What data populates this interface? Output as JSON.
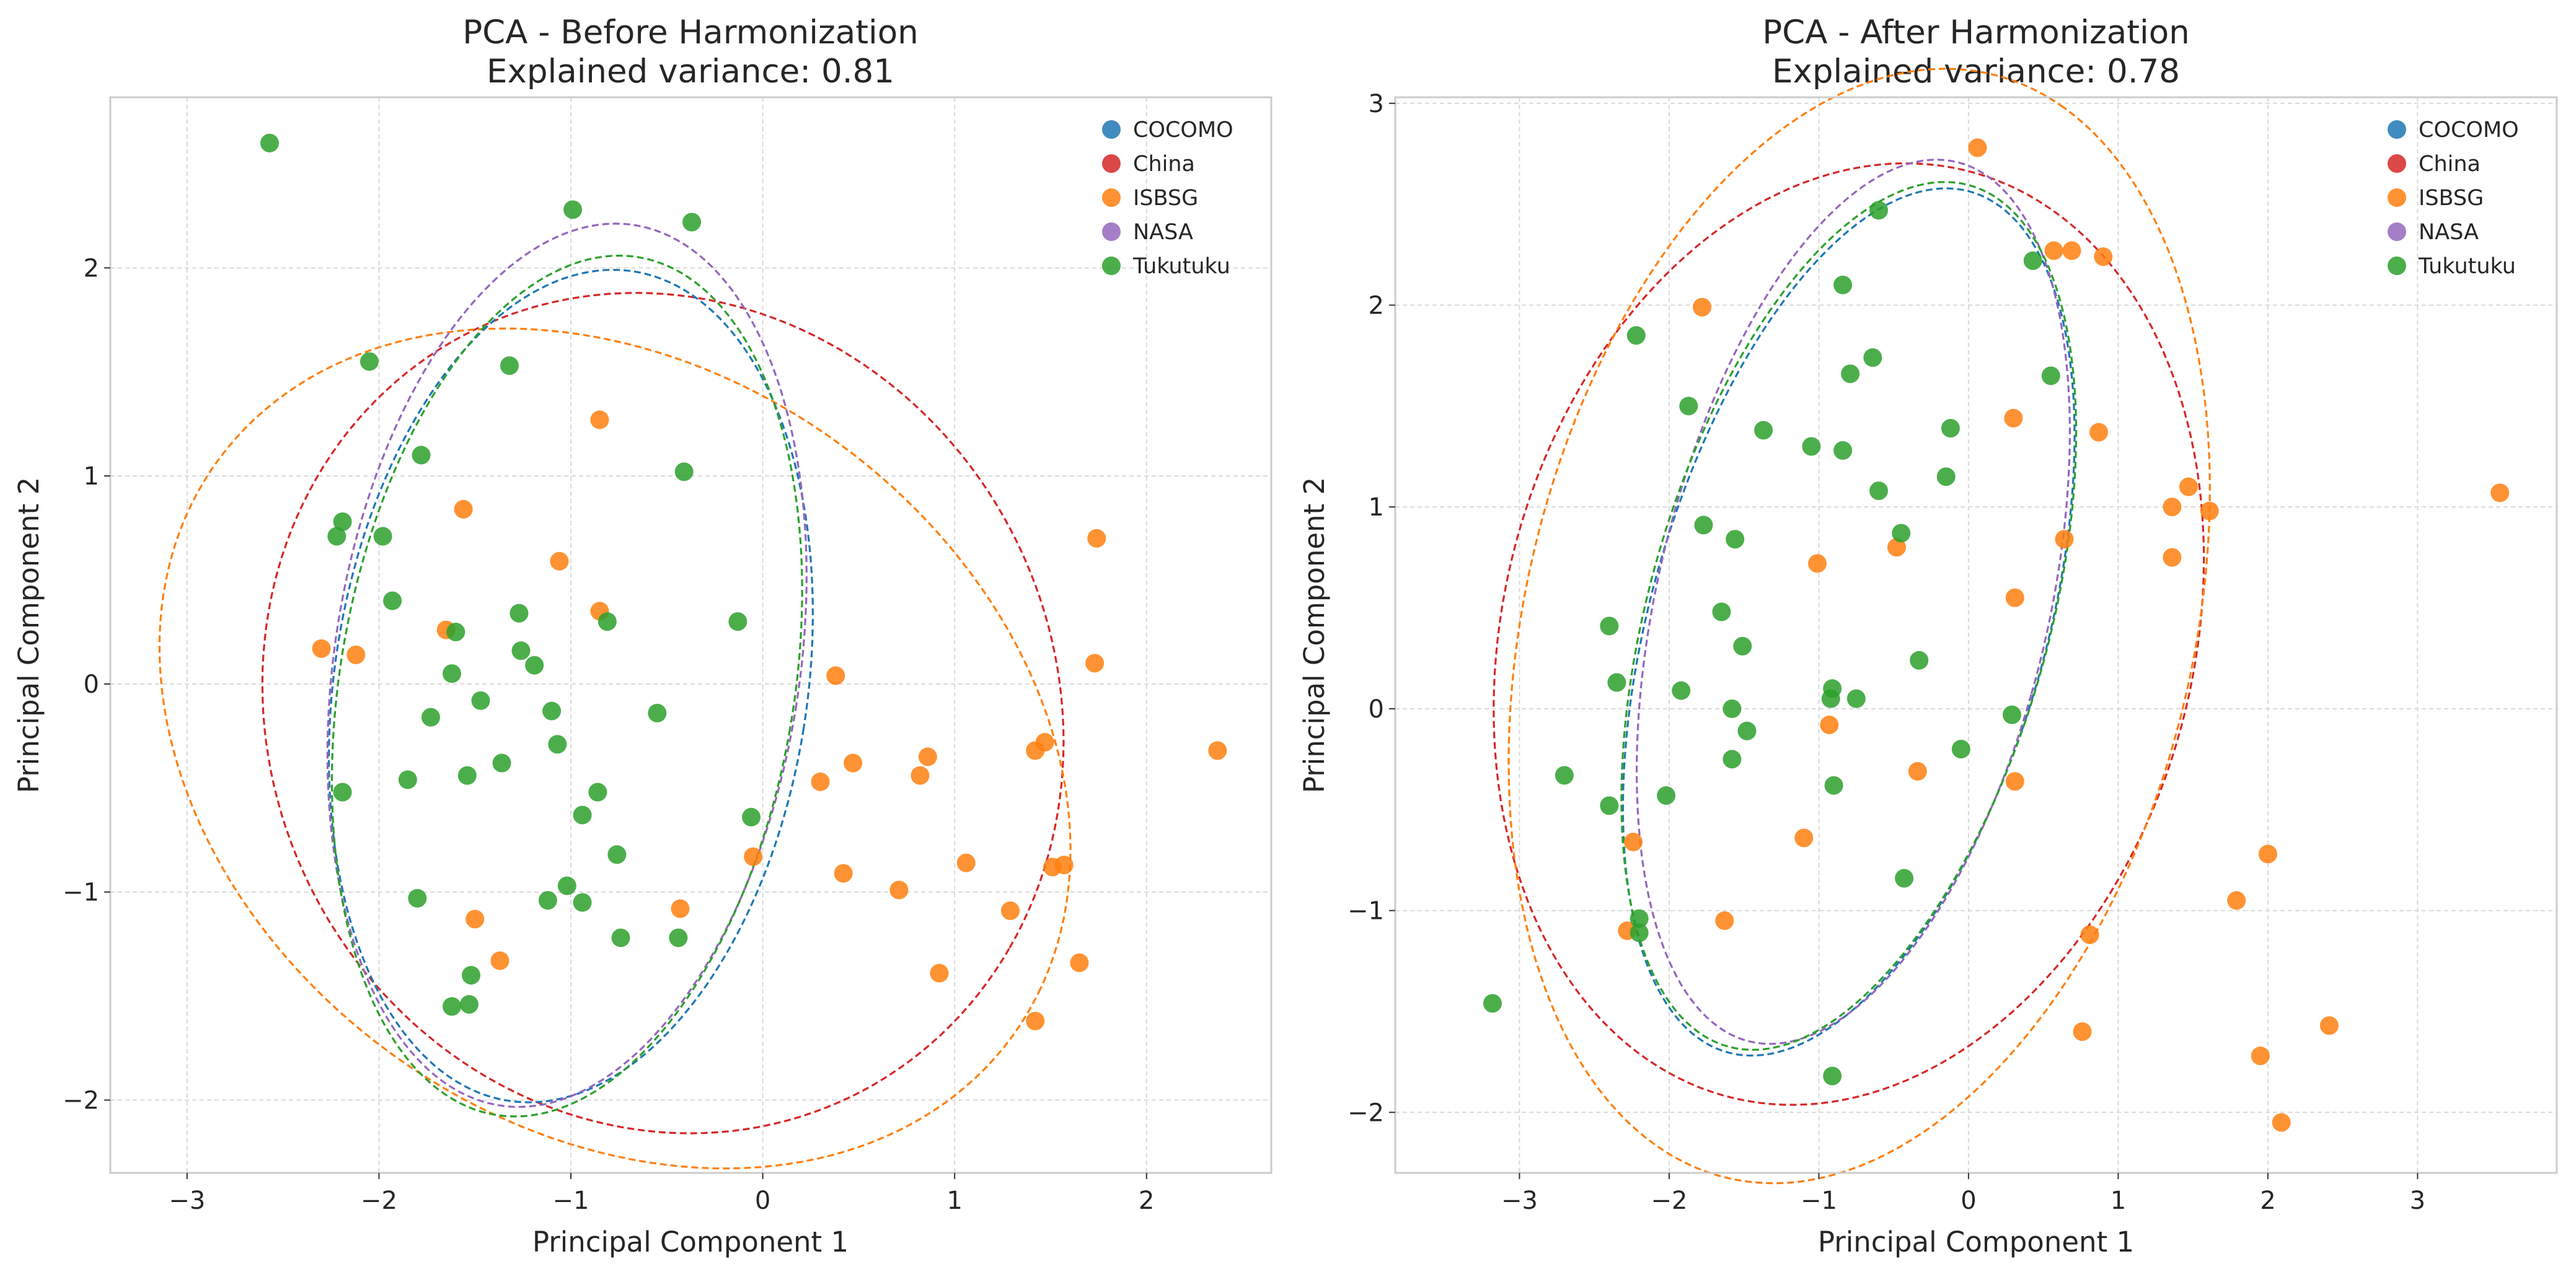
{
  "colors": {
    "COCOMO": "#1f77b4",
    "China": "#d62728",
    "ISBSG": "#ff7f0e",
    "NASA": "#9467bd",
    "Tukutuku": "#2ca02c",
    "grid": "#d9d9d9",
    "frame": "#cccccc"
  },
  "chart_data": [
    {
      "type": "scatter",
      "title": "PCA - Before Harmonization",
      "subtitle": "Explained variance: 0.81",
      "xlabel": "Principal Component 1",
      "ylabel": "Principal Component 2",
      "xlim": [
        -3.4,
        2.65
      ],
      "ylim": [
        -2.35,
        2.82
      ],
      "xticks": [
        -3,
        -2,
        -1,
        0,
        1,
        2
      ],
      "yticks": [
        -2,
        -1,
        0,
        1,
        2
      ],
      "xtick_labels": [
        "−3",
        "−2",
        "−1",
        "0",
        "1",
        "2"
      ],
      "ytick_labels": [
        "−2",
        "−1",
        "0",
        "1",
        "2"
      ],
      "grid": true,
      "legend_position": "top-right",
      "legend": [
        "COCOMO",
        "China",
        "ISBSG",
        "NASA",
        "Tukutuku"
      ],
      "series": [
        {
          "name": "ISBSG",
          "points": [
            [
              -1.56,
              0.84
            ],
            [
              -2.3,
              0.17
            ],
            [
              -2.12,
              0.14
            ],
            [
              -1.65,
              0.26
            ],
            [
              -1.06,
              0.59
            ],
            [
              -0.85,
              0.35
            ],
            [
              -0.85,
              1.27
            ],
            [
              -0.05,
              -0.83
            ],
            [
              -0.43,
              -1.08
            ],
            [
              -1.5,
              -1.13
            ],
            [
              -1.37,
              -1.33
            ],
            [
              0.38,
              0.04
            ],
            [
              0.3,
              -0.47
            ],
            [
              0.47,
              -0.38
            ],
            [
              0.42,
              -0.91
            ],
            [
              0.71,
              -0.99
            ],
            [
              0.82,
              -0.44
            ],
            [
              0.86,
              -0.35
            ],
            [
              1.06,
              -0.86
            ],
            [
              0.92,
              -1.39
            ],
            [
              1.29,
              -1.09
            ],
            [
              1.42,
              -0.32
            ],
            [
              1.47,
              -0.28
            ],
            [
              1.51,
              -0.88
            ],
            [
              1.57,
              -0.87
            ],
            [
              1.42,
              -1.62
            ],
            [
              1.65,
              -1.34
            ],
            [
              1.74,
              0.7
            ],
            [
              1.73,
              0.1
            ],
            [
              2.37,
              -0.32
            ]
          ]
        },
        {
          "name": "Tukutuku",
          "points": [
            [
              -2.57,
              2.6
            ],
            [
              -0.99,
              2.28
            ],
            [
              -0.37,
              2.22
            ],
            [
              -1.32,
              1.53
            ],
            [
              -2.05,
              1.55
            ],
            [
              -1.78,
              1.1
            ],
            [
              -0.41,
              1.02
            ],
            [
              -2.19,
              0.78
            ],
            [
              -2.22,
              0.71
            ],
            [
              -1.98,
              0.71
            ],
            [
              -1.93,
              0.4
            ],
            [
              -1.6,
              0.25
            ],
            [
              -1.27,
              0.34
            ],
            [
              -0.81,
              0.3
            ],
            [
              -0.13,
              0.3
            ],
            [
              -1.62,
              0.05
            ],
            [
              -1.26,
              0.16
            ],
            [
              -1.19,
              0.09
            ],
            [
              -1.47,
              -0.08
            ],
            [
              -1.73,
              -0.16
            ],
            [
              -1.1,
              -0.13
            ],
            [
              -0.55,
              -0.14
            ],
            [
              -1.07,
              -0.29
            ],
            [
              -1.36,
              -0.38
            ],
            [
              -1.85,
              -0.46
            ],
            [
              -1.54,
              -0.44
            ],
            [
              -2.19,
              -0.52
            ],
            [
              -0.86,
              -0.52
            ],
            [
              -0.94,
              -0.63
            ],
            [
              -0.06,
              -0.64
            ],
            [
              -0.76,
              -0.82
            ],
            [
              -1.8,
              -1.03
            ],
            [
              -1.02,
              -0.97
            ],
            [
              -1.12,
              -1.04
            ],
            [
              -0.94,
              -1.05
            ],
            [
              -0.74,
              -1.22
            ],
            [
              -0.44,
              -1.22
            ],
            [
              -1.52,
              -1.4
            ],
            [
              -1.62,
              -1.55
            ],
            [
              -1.53,
              -1.54
            ]
          ]
        }
      ],
      "ellipses": [
        {
          "name": "China",
          "center": [
            -0.52,
            -0.14
          ],
          "width": 4.26,
          "height": 3.95,
          "angle_deg": -32
        },
        {
          "name": "ISBSG",
          "center": [
            -0.77,
            -0.31
          ],
          "width": 5.0,
          "height": 3.72,
          "angle_deg": -28
        },
        {
          "name": "COCOMO",
          "center": [
            -1.0,
            -0.01
          ],
          "width": 2.46,
          "height": 4.04,
          "angle_deg": -10
        },
        {
          "name": "NASA",
          "center": [
            -1.02,
            0.09
          ],
          "width": 2.42,
          "height": 4.29,
          "angle_deg": -10
        },
        {
          "name": "Tukutuku",
          "center": [
            -1.02,
            -0.01
          ],
          "width": 2.36,
          "height": 4.19,
          "angle_deg": -11
        }
      ]
    },
    {
      "type": "scatter",
      "title": "PCA - After Harmonization",
      "subtitle": "Explained variance: 0.78",
      "xlabel": "Principal Component 1",
      "ylabel": "Principal Component 2",
      "xlim": [
        -3.83,
        3.93
      ],
      "ylim": [
        -2.3,
        3.03
      ],
      "xticks": [
        -3,
        -2,
        -1,
        0,
        1,
        2,
        3
      ],
      "yticks": [
        -2,
        -1,
        0,
        1,
        2,
        3
      ],
      "xtick_labels": [
        "−3",
        "−2",
        "−1",
        "0",
        "1",
        "2",
        "3"
      ],
      "ytick_labels": [
        "−2",
        "−1",
        "0",
        "1",
        "2",
        "3"
      ],
      "grid": true,
      "legend_position": "top-right",
      "legend": [
        "COCOMO",
        "China",
        "ISBSG",
        "NASA",
        "Tukutuku"
      ],
      "series": [
        {
          "name": "ISBSG",
          "points": [
            [
              0.06,
              2.78
            ],
            [
              0.57,
              2.27
            ],
            [
              0.69,
              2.27
            ],
            [
              0.9,
              2.24
            ],
            [
              -1.78,
              1.99
            ],
            [
              0.3,
              1.44
            ],
            [
              0.87,
              1.37
            ],
            [
              1.47,
              1.1
            ],
            [
              1.36,
              1.0
            ],
            [
              1.61,
              0.98
            ],
            [
              1.36,
              0.75
            ],
            [
              0.64,
              0.84
            ],
            [
              -0.48,
              0.8
            ],
            [
              -1.01,
              0.72
            ],
            [
              0.31,
              0.55
            ],
            [
              -0.93,
              -0.08
            ],
            [
              -0.34,
              -0.31
            ],
            [
              0.31,
              -0.36
            ],
            [
              -1.1,
              -0.64
            ],
            [
              -2.24,
              -0.66
            ],
            [
              2.0,
              -0.72
            ],
            [
              1.79,
              -0.95
            ],
            [
              -1.63,
              -1.05
            ],
            [
              0.81,
              -1.12
            ],
            [
              -2.28,
              -1.1
            ],
            [
              0.76,
              -1.6
            ],
            [
              1.95,
              -1.72
            ],
            [
              2.41,
              -1.57
            ],
            [
              2.09,
              -2.05
            ],
            [
              3.55,
              1.07
            ]
          ]
        },
        {
          "name": "Tukutuku",
          "points": [
            [
              -0.6,
              2.47
            ],
            [
              0.43,
              2.22
            ],
            [
              -0.84,
              2.1
            ],
            [
              -2.22,
              1.85
            ],
            [
              -0.64,
              1.74
            ],
            [
              -0.79,
              1.66
            ],
            [
              0.55,
              1.65
            ],
            [
              -1.87,
              1.5
            ],
            [
              -1.37,
              1.38
            ],
            [
              -0.12,
              1.39
            ],
            [
              -1.05,
              1.3
            ],
            [
              -0.84,
              1.28
            ],
            [
              -0.15,
              1.15
            ],
            [
              -0.6,
              1.08
            ],
            [
              -1.77,
              0.91
            ],
            [
              -0.45,
              0.87
            ],
            [
              -1.56,
              0.84
            ],
            [
              -1.65,
              0.48
            ],
            [
              -2.4,
              0.41
            ],
            [
              -1.51,
              0.31
            ],
            [
              -0.33,
              0.24
            ],
            [
              -2.35,
              0.13
            ],
            [
              -1.92,
              0.09
            ],
            [
              -0.91,
              0.1
            ],
            [
              -0.92,
              0.05
            ],
            [
              -0.75,
              0.05
            ],
            [
              -1.58,
              0.0
            ],
            [
              -1.48,
              -0.11
            ],
            [
              -0.05,
              -0.2
            ],
            [
              -1.58,
              -0.25
            ],
            [
              0.29,
              -0.03
            ],
            [
              -2.7,
              -0.33
            ],
            [
              -0.9,
              -0.38
            ],
            [
              -2.02,
              -0.43
            ],
            [
              -2.4,
              -0.48
            ],
            [
              -0.43,
              -0.84
            ],
            [
              -2.2,
              -1.04
            ],
            [
              -2.2,
              -1.11
            ],
            [
              -3.18,
              -1.46
            ],
            [
              -0.91,
              -1.82
            ]
          ]
        }
      ],
      "ellipses": [
        {
          "name": "China",
          "center": [
            -0.8,
            0.37
          ],
          "width": 5.07,
          "height": 4.31,
          "angle_deg": 42
        },
        {
          "name": "ISBSG",
          "center": [
            -0.73,
            0.41
          ],
          "width": 5.82,
          "height": 4.31,
          "angle_deg": 62
        },
        {
          "name": "COCOMO",
          "center": [
            -0.8,
            0.43
          ],
          "width": 2.55,
          "height": 4.59,
          "angle_deg": -25
        },
        {
          "name": "NASA",
          "center": [
            -0.77,
            0.53
          ],
          "width": 2.55,
          "height": 4.59,
          "angle_deg": -21
        },
        {
          "name": "Tukutuku",
          "center": [
            -0.8,
            0.46
          ],
          "width": 2.58,
          "height": 4.59,
          "angle_deg": -25
        }
      ]
    }
  ]
}
